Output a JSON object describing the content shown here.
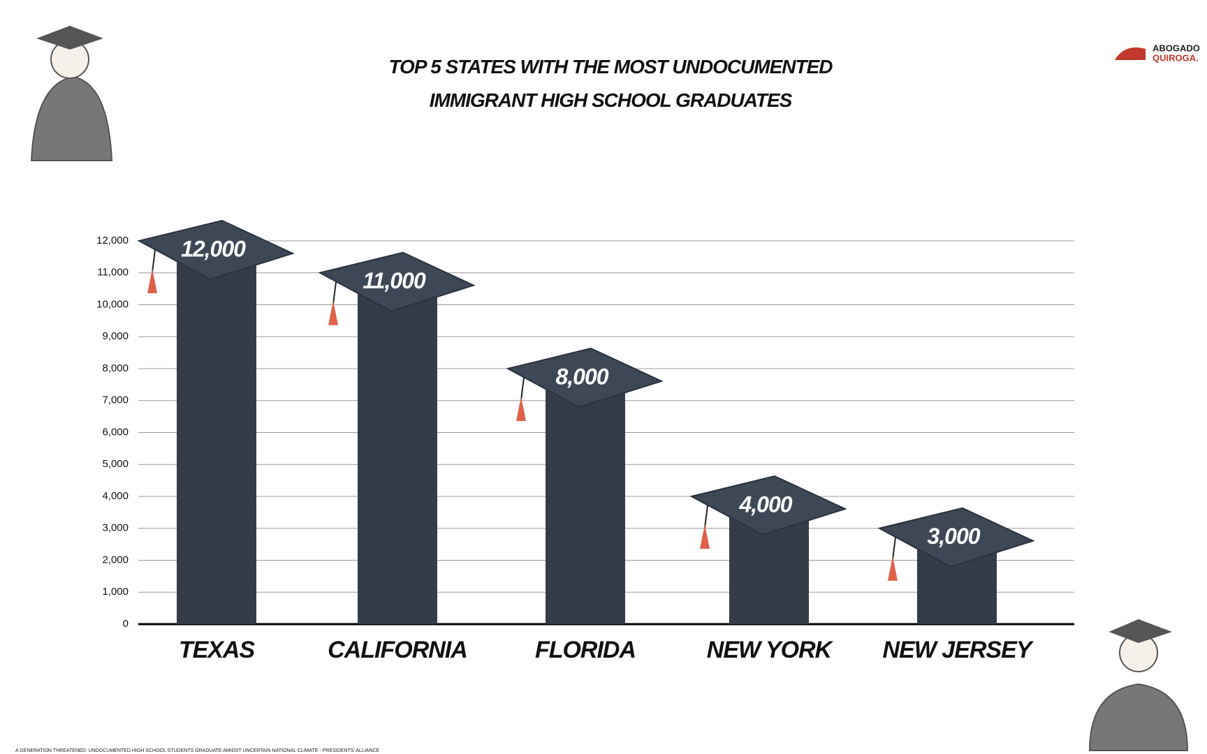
{
  "chart_data": {
    "type": "bar",
    "title": "TOP 5 STATES WITH THE MOST UNDOCUMENTED IMMIGRANT HIGH SCHOOL GRADUATES",
    "categories": [
      "TEXAS",
      "CALIFORNIA",
      "FLORIDA",
      "NEW YORK",
      "NEW JERSEY"
    ],
    "values": [
      12000,
      11000,
      8000,
      4000,
      3000
    ],
    "value_labels": [
      "12,000",
      "11,000",
      "8,000",
      "4,000",
      "3,000"
    ],
    "color": "#343c47",
    "ylim": [
      0,
      12000
    ],
    "yticks": [
      0,
      {
        "value": 1000,
        "label": "1,000"
      },
      {
        "value": 2000,
        "label": "2,000"
      },
      {
        "value": 3000,
        "label": "3,000"
      },
      {
        "value": 4000,
        "label": "4,000"
      },
      {
        "value": 5000,
        "label": "5,000"
      },
      {
        "value": 6000,
        "label": "6,000"
      },
      {
        "value": 7000,
        "label": "7,000"
      },
      {
        "value": 8000,
        "label": "8,000"
      },
      {
        "value": 9000,
        "label": "9,000"
      },
      {
        "value": 10000,
        "label": "10,000"
      },
      {
        "value": 11000,
        "label": "11,000"
      },
      {
        "value": 12000,
        "label": "12,000"
      }
    ],
    "grid": true,
    "source": "A GENERATION THREATENED: UNDOCUMENTED HIGH SCHOOL STUDENTS GRADUATE AMIDST UNCERTAIN NATIONAL CLIMATE - PRESIDENTS' ALLIANCE",
    "logo": [
      "ABOGADO",
      "QUIROGA."
    ]
  }
}
